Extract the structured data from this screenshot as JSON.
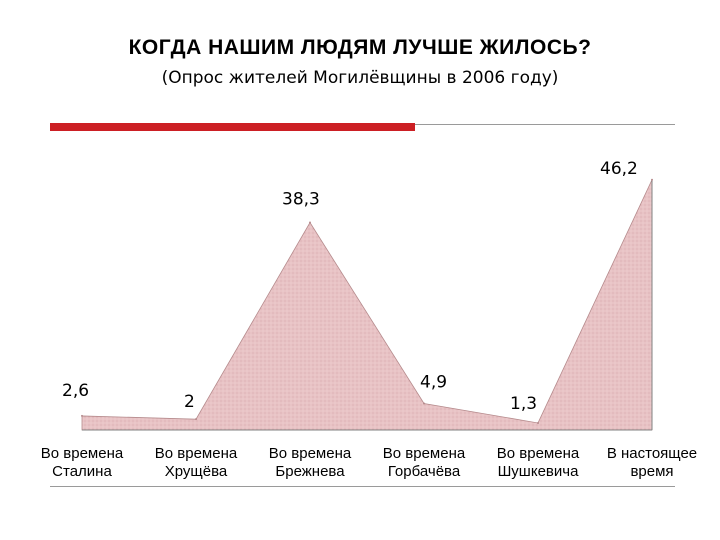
{
  "slide": {
    "title": "КОГДА НАШИМ ЛЮДЯМ ЛУЧШЕ ЖИЛОСЬ?",
    "subtitle": "(Опрос жителей Могилёвщины в 2006 году)",
    "accent_color": "#cc1f24",
    "rule_color": "#9a9a9a"
  },
  "chart_data": {
    "type": "area",
    "title": "КОГДА НАШИМ ЛЮДЯМ ЛУЧШЕ ЖИЛОСЬ?",
    "subtitle": "(Опрос жителей Могилёвщины в 2006 году)",
    "categories": [
      [
        "Во времена",
        "Сталина"
      ],
      [
        "Во времена",
        "Хрущёва"
      ],
      [
        "Во времена",
        "Брежнева"
      ],
      [
        "Во времена",
        "Горбачёва"
      ],
      [
        "Во времена",
        "Шушкевича"
      ],
      [
        "В настоящее",
        "время"
      ]
    ],
    "values": [
      2.6,
      2,
      38.3,
      4.9,
      1.3,
      46.2
    ],
    "data_labels": [
      "2,6",
      "2",
      "38,3",
      "4,9",
      "1,3",
      "46,2"
    ],
    "ylim": [
      0,
      48
    ],
    "grid": false,
    "legend": "none",
    "xlabel": "",
    "ylabel": "",
    "colors": {
      "fill": "#e8c3c5",
      "stroke": "#b58a8c",
      "axis": "#808080"
    }
  }
}
